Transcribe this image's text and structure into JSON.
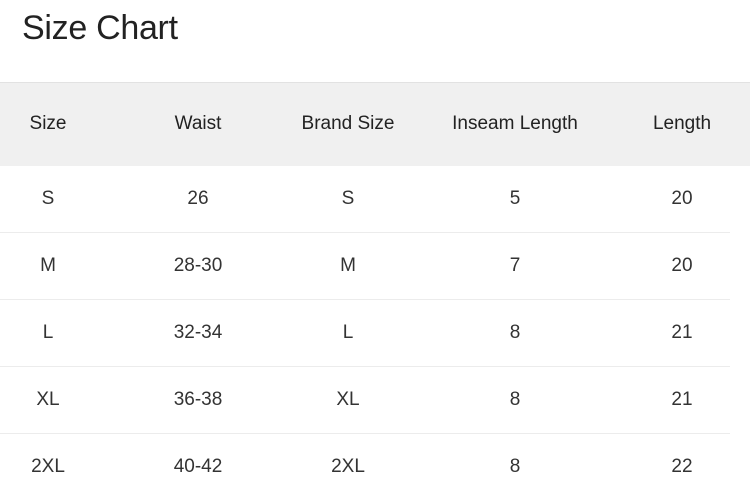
{
  "title": "Size Chart",
  "table": {
    "headers": [
      "Size",
      "Waist",
      "Brand Size",
      "Inseam Length",
      "Length"
    ],
    "rows": [
      [
        "S",
        "26",
        "S",
        "5",
        "20"
      ],
      [
        "M",
        "28-30",
        "M",
        "7",
        "20"
      ],
      [
        "L",
        "32-34",
        "L",
        "8",
        "21"
      ],
      [
        "XL",
        "36-38",
        "XL",
        "8",
        "21"
      ],
      [
        "2XL",
        "40-42",
        "2XL",
        "8",
        "22"
      ]
    ]
  },
  "colors": {
    "header_bg": "#f0f0f0",
    "text": "#222222"
  }
}
